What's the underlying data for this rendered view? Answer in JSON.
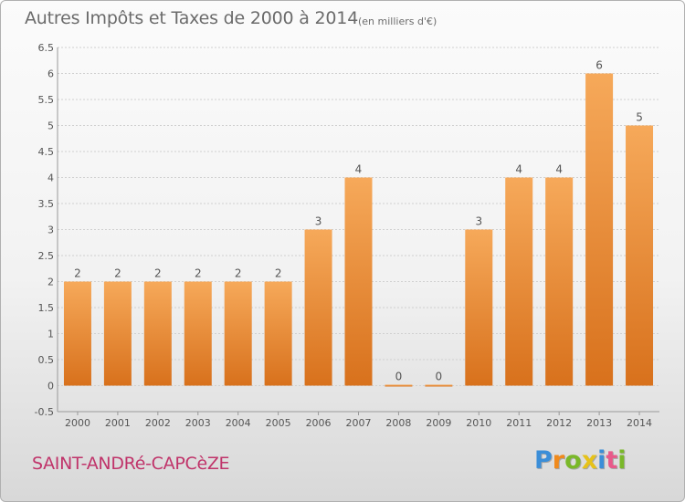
{
  "title": "Autres Impôts et Taxes de 2000 à 2014",
  "subtitle": "(en milliers d'€)",
  "commune": "SAINT-ANDRé-CAPCèZE",
  "logo": "Proxiti",
  "colors": {
    "bar_light": "#f6a95a",
    "bar_dark": "#d8711c",
    "axis_text": "#555555",
    "grid": "#d0d0d0",
    "commune_text": "#c0346a"
  },
  "chart_data": {
    "type": "bar",
    "title": "Autres Impôts et Taxes de 2000 à 2014",
    "xlabel": "",
    "ylabel": "",
    "categories": [
      "2000",
      "2001",
      "2002",
      "2003",
      "2004",
      "2005",
      "2006",
      "2007",
      "2008",
      "2009",
      "2010",
      "2011",
      "2012",
      "2013",
      "2014"
    ],
    "values": [
      2,
      2,
      2,
      2,
      2,
      2,
      3,
      4,
      0,
      0,
      3,
      4,
      4,
      6,
      5
    ],
    "data_labels": [
      "2",
      "2",
      "2",
      "2",
      "2",
      "2",
      "3",
      "4",
      "0",
      "0",
      "3",
      "4",
      "4",
      "6",
      "5"
    ],
    "ylim": [
      -0.5,
      6.5
    ],
    "yticks": [
      -0.5,
      0,
      0.5,
      1,
      1.5,
      2,
      2.5,
      3,
      3.5,
      4,
      4.5,
      5,
      5.5,
      6,
      6.5
    ],
    "ytick_labels": [
      "-0.5",
      "0",
      "0.5",
      "1",
      "1.5",
      "2",
      "2.5",
      "3",
      "3.5",
      "4",
      "4.5",
      "5",
      "5.5",
      "6",
      "6.5"
    ],
    "grid": true,
    "legend": "none"
  }
}
